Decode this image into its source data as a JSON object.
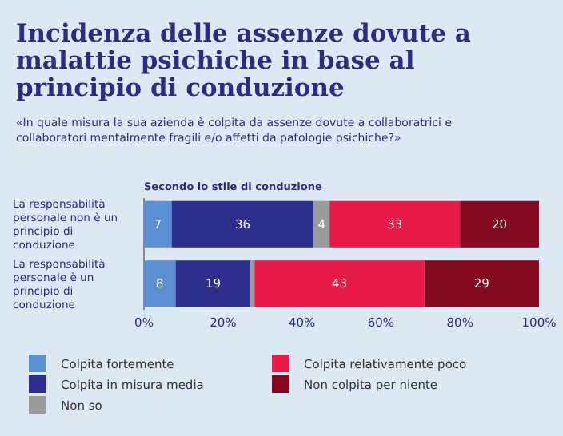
{
  "chart_data": {
    "type": "bar",
    "orientation": "horizontal",
    "stacked": true,
    "title": "Incidenza delle assenze dovute a malattie psichiche in base al principio di conduzione",
    "subtitle": "«In quale misura la sua azienda è colpita da assenze dovute a collaboratrici e collaboratori mentalmente fragili e/o affetti da patologie psichiche?»",
    "annotations": [
      "Secondo lo stile di conduzione"
    ],
    "categories": [
      "La responsabilità personale non è un principio di conduzione",
      "La responsabilità personale è un principio di conduzione"
    ],
    "series": [
      {
        "name": "Colpita fortemente",
        "color": "#5b8fd1",
        "values": [
          7,
          8
        ],
        "value_labels": [
          "7",
          "8"
        ]
      },
      {
        "name": "Colpita in misura media",
        "color": "#2b2e8c",
        "values": [
          36,
          19
        ],
        "value_labels": [
          "36",
          "19"
        ]
      },
      {
        "name": "Non so",
        "color": "#9b9b9b",
        "values": [
          4,
          1
        ],
        "value_labels": [
          "4",
          null
        ]
      },
      {
        "name": "Colpita relativamente poco",
        "color": "#e81a48",
        "values": [
          33,
          43
        ],
        "value_labels": [
          "33",
          "43"
        ]
      },
      {
        "name": "Non colpita per niente",
        "color": "#85091f",
        "values": [
          20,
          29
        ],
        "value_labels": [
          "20",
          "29"
        ]
      }
    ],
    "xlim": [
      0,
      100
    ],
    "xticks": [
      {
        "value": 0,
        "label": "0%"
      },
      {
        "value": 20,
        "label": "20%"
      },
      {
        "value": 40,
        "label": "40%"
      },
      {
        "value": 60,
        "label": "60%"
      },
      {
        "value": 80,
        "label": "80%"
      },
      {
        "value": 100,
        "label": "100%"
      }
    ],
    "legend": "bottom",
    "grid": false
  }
}
